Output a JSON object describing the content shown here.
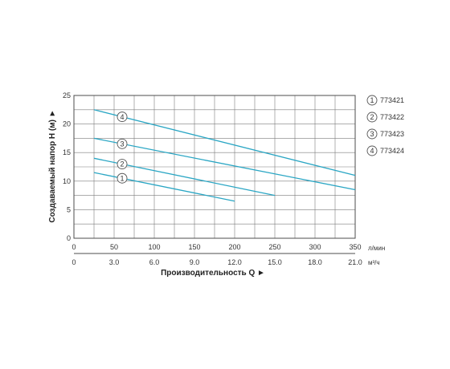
{
  "chart_data": {
    "type": "line",
    "ylabel": "Создаваемый напор H (м) ►",
    "xlabel": "Производительность Q ►",
    "ylim": [
      0,
      25
    ],
    "xlim": [
      0,
      350
    ],
    "y_ticks": [
      "0",
      "5",
      "10",
      "15",
      "20",
      "25"
    ],
    "x_ticks_lmin": [
      "0",
      "50",
      "100",
      "150",
      "200",
      "250",
      "300",
      "350"
    ],
    "x_ticks_m3h": [
      "0",
      "3.0",
      "6.0",
      "9.0",
      "12.0",
      "15.0",
      "18.0",
      "21.0"
    ],
    "x_unit_lmin": "л/мин",
    "x_unit_m3h": "м³/ч",
    "grid": true,
    "legend_position": "right",
    "line_color": "#2aa6c4",
    "series": [
      {
        "name": "773421",
        "marker": "1",
        "x": [
          25,
          200
        ],
        "y": [
          11.5,
          6.5
        ]
      },
      {
        "name": "773422",
        "marker": "2",
        "x": [
          25,
          250
        ],
        "y": [
          14,
          7.5
        ]
      },
      {
        "name": "773423",
        "marker": "3",
        "x": [
          25,
          350
        ],
        "y": [
          17.5,
          8.5
        ]
      },
      {
        "name": "773424",
        "marker": "4",
        "x": [
          25,
          350
        ],
        "y": [
          22.5,
          11
        ]
      }
    ]
  }
}
